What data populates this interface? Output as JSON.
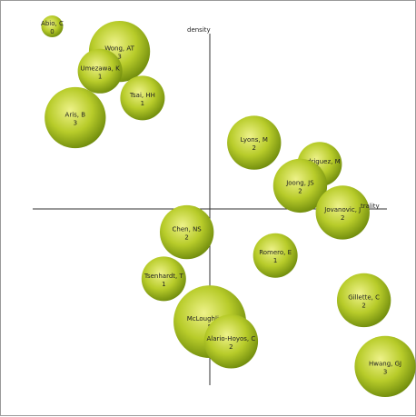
{
  "chart_data": {
    "type": "scatter",
    "title": "",
    "xlabel": "centrality",
    "ylabel": "density",
    "axis_label_text": {
      "x": "trality",
      "y": "density"
    },
    "xlim": [
      -1,
      1
    ],
    "ylim": [
      -1,
      1
    ],
    "grid": false,
    "legend": "none",
    "colors": {
      "bubble_light": "#eef28a",
      "bubble_mid": "#b8cc2a",
      "bubble_dark": "#6e8a0c",
      "axis": "#333333",
      "text": "#222222"
    },
    "points": [
      {
        "name": "Abio, C",
        "value": 0,
        "x": -0.89,
        "y": 1.02
      },
      {
        "name": "Wong, AT",
        "value": 3,
        "x": -0.51,
        "y": 0.88
      },
      {
        "name": "Umezawa, K",
        "value": 1,
        "x": -0.62,
        "y": 0.77
      },
      {
        "name": "Tsai, HH",
        "value": 1,
        "x": -0.38,
        "y": 0.62
      },
      {
        "name": "Aris, B",
        "value": 3,
        "x": -0.76,
        "y": 0.51
      },
      {
        "name": "Lyons, M",
        "value": 2,
        "x": 0.25,
        "y": 0.37
      },
      {
        "name": "Rodriguez, M",
        "value": 1,
        "x": 0.62,
        "y": 0.25
      },
      {
        "name": "Joong, JS",
        "value": 2,
        "x": 0.51,
        "y": 0.13
      },
      {
        "name": "Jovanovic, J",
        "value": 2,
        "x": 0.75,
        "y": -0.02
      },
      {
        "name": "Chen, NS",
        "value": 2,
        "x": -0.13,
        "y": -0.13
      },
      {
        "name": "Romero, E",
        "value": 1,
        "x": 0.37,
        "y": -0.26
      },
      {
        "name": "Tsenhardt, T",
        "value": 1,
        "x": -0.26,
        "y": -0.39
      },
      {
        "name": "Gillette, C",
        "value": 2,
        "x": 0.87,
        "y": -0.51
      },
      {
        "name": "McLoughlin, JE",
        "value": 5,
        "x": 0.0,
        "y": -0.63
      },
      {
        "name": "Alario-Hoyos, C",
        "value": 2,
        "x": 0.12,
        "y": -0.74
      },
      {
        "name": "Hwang, GJ",
        "value": 3,
        "x": 0.99,
        "y": -0.88
      }
    ]
  }
}
